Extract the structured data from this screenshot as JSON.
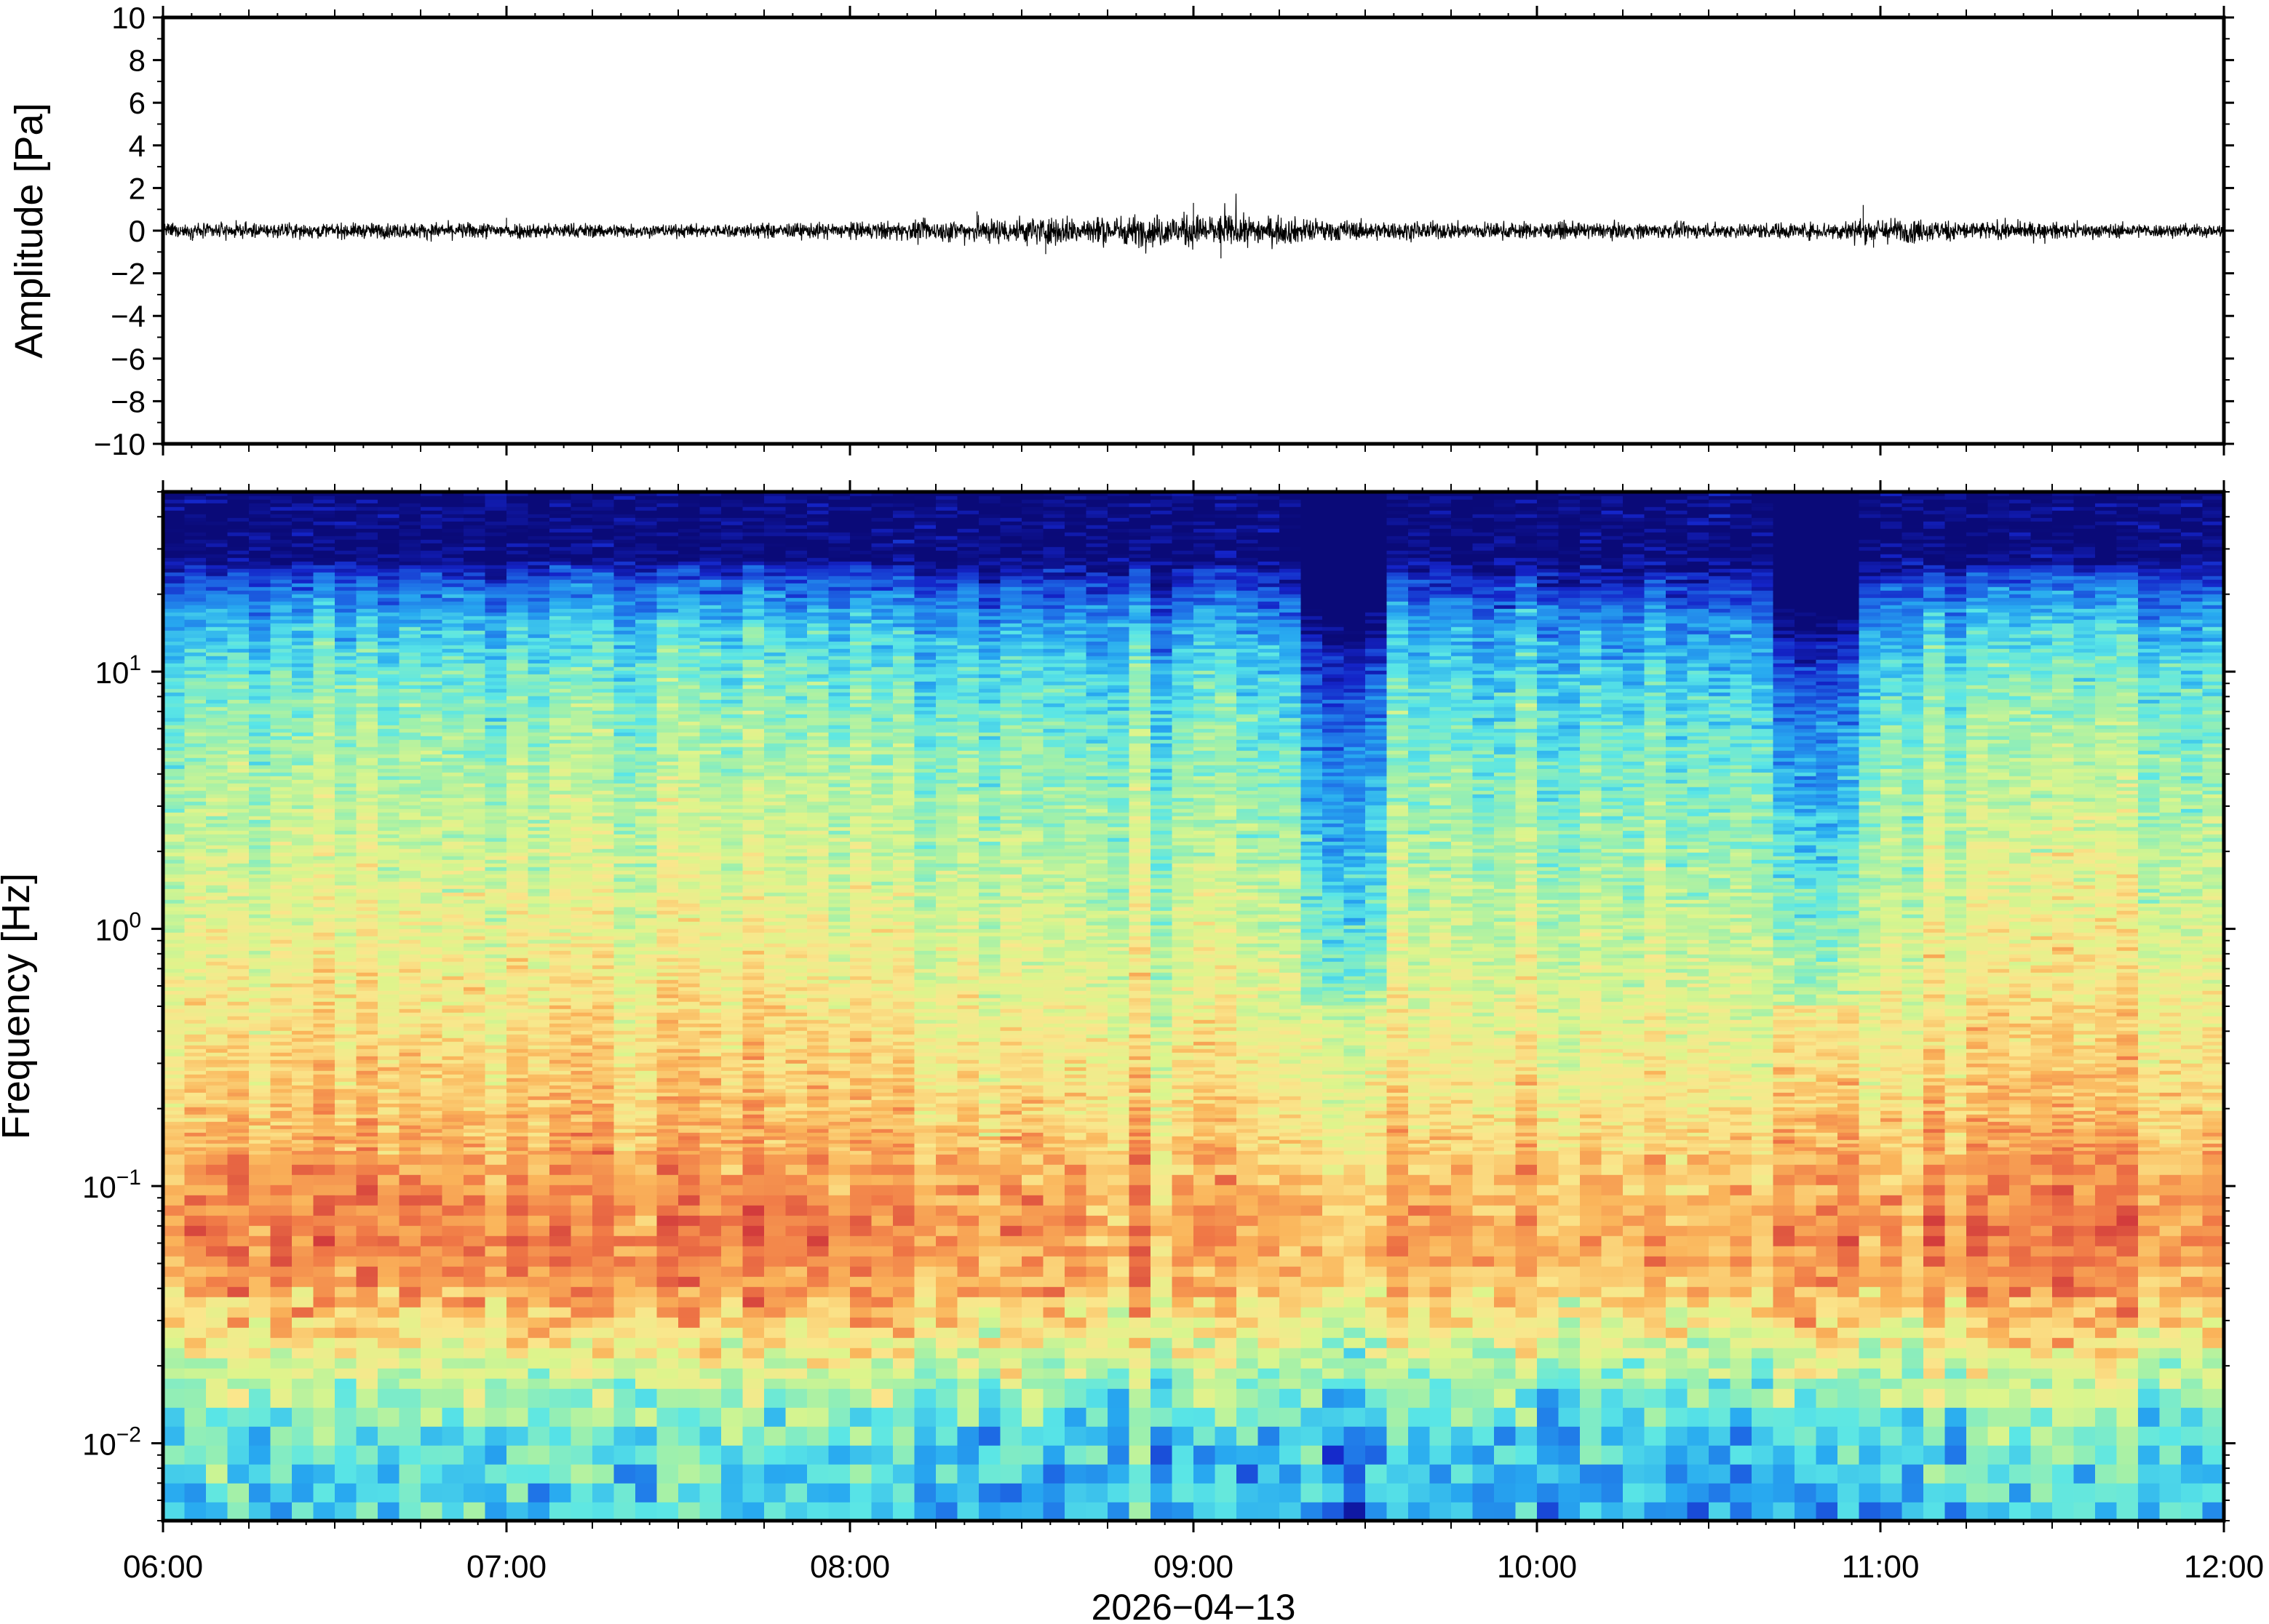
{
  "chart_data": [
    {
      "type": "line",
      "name": "waveform-panel",
      "ylabel": "Amplitude [Pa]",
      "ylim": [
        -10,
        10
      ],
      "yticks": [
        "10",
        "8",
        "6",
        "4",
        "2",
        "0",
        "−2",
        "−4",
        "−6",
        "−8",
        "−10"
      ],
      "ytick_values": [
        10,
        8,
        6,
        4,
        2,
        0,
        -2,
        -4,
        -6,
        -8,
        -10
      ],
      "xlim_hours": [
        6,
        12
      ],
      "series": [
        {
          "color": "#000000",
          "envelope_hours": [
            6.0,
            6.5,
            7.0,
            7.5,
            8.0,
            8.25,
            8.5,
            8.75,
            9.0,
            9.25,
            9.5,
            10.0,
            10.5,
            10.8,
            11.0,
            11.3,
            11.6,
            12.0
          ],
          "envelope_pa": [
            0.4,
            0.4,
            0.45,
            0.35,
            0.45,
            0.55,
            0.75,
            0.8,
            0.9,
            0.75,
            0.5,
            0.45,
            0.4,
            0.45,
            0.7,
            0.5,
            0.4,
            0.35
          ],
          "peaks": [
            {
              "hour": 9.0,
              "pa": 1.3
            },
            {
              "hour": 9.08,
              "pa": -1.3
            },
            {
              "hour": 8.57,
              "pa": -1.1
            },
            {
              "hour": 8.37,
              "pa": 0.9
            },
            {
              "hour": 7.0,
              "pa": 0.6
            },
            {
              "hour": 10.95,
              "pa": 1.2
            },
            {
              "hour": 10.98,
              "pa": -0.8
            }
          ]
        }
      ]
    },
    {
      "type": "heatmap",
      "name": "spectrogram-panel",
      "ylabel": "Frequency [Hz]",
      "xlabel": "2026−04−13",
      "y_scale": "log",
      "ylim_hz": [
        0.005,
        50
      ],
      "yticks": [
        {
          "base": "10",
          "exp": "−2",
          "value": 0.01
        },
        {
          "base": "10",
          "exp": "−1",
          "value": 0.1
        },
        {
          "base": "10",
          "exp": "0",
          "value": 1
        },
        {
          "base": "10",
          "exp": "1",
          "value": 10
        }
      ],
      "xticks": [
        "06:00",
        "07:00",
        "08:00",
        "09:00",
        "10:00",
        "11:00",
        "12:00"
      ],
      "xtick_hours": [
        6,
        7,
        8,
        9,
        10,
        11,
        12
      ],
      "colormap": [
        "#0a0a78",
        "#1424c8",
        "#1e6ee6",
        "#28aaf0",
        "#5ae6e6",
        "#a0f0aa",
        "#dcf58c",
        "#fae68c",
        "#fab45a",
        "#f07846",
        "#d23c3c"
      ],
      "level_profile": {
        "log10_hz": [
          -2.3,
          -2.0,
          -1.8,
          -1.6,
          -1.4,
          -1.2,
          -1.0,
          -0.7,
          -0.4,
          0.0,
          0.4,
          0.8,
          1.0,
          1.2,
          1.35,
          1.45,
          1.7
        ],
        "level": [
          0.32,
          0.38,
          0.5,
          0.66,
          0.8,
          0.86,
          0.82,
          0.74,
          0.68,
          0.61,
          0.54,
          0.46,
          0.4,
          0.3,
          0.15,
          0.0,
          0.0
        ]
      },
      "dimmed_intervals_hours": [
        {
          "from": 9.3,
          "to": 9.55,
          "drop": 0.08
        },
        {
          "from": 10.7,
          "to": 10.95,
          "drop": 0.12
        }
      ]
    }
  ]
}
